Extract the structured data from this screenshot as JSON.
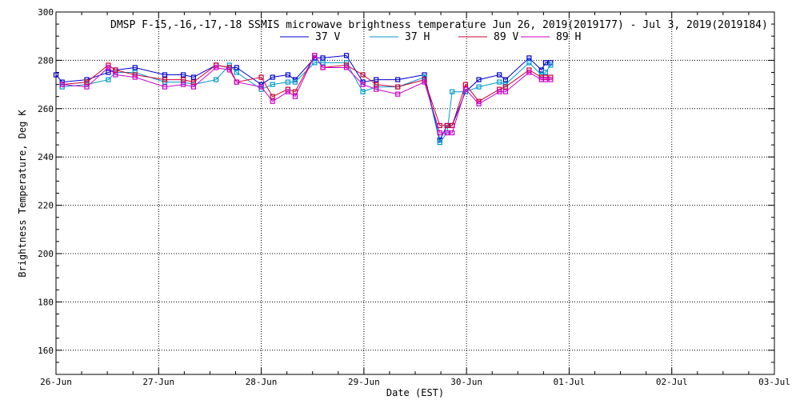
{
  "chart_data": {
    "type": "line",
    "title": "DMSP F-15,-16,-17,-18 SSMIS microwave brightness temperature Jun 26, 2019(2019177) - Jul  3, 2019(2019184)",
    "xlabel": "Date (EST)",
    "ylabel": "Brightness Temperature, Deg K",
    "xlim": [
      "26-Jun",
      "03-Jul"
    ],
    "ylim": [
      150,
      300
    ],
    "x_ticks": [
      "26-Jun",
      "27-Jun",
      "28-Jun",
      "29-Jun",
      "30-Jun",
      "01-Jul",
      "02-Jul",
      "03-Jul"
    ],
    "y_ticks": [
      160,
      180,
      200,
      220,
      240,
      260,
      280,
      300
    ],
    "grid": true,
    "legend_position": "top",
    "series": [
      {
        "name": "37 V",
        "color": "#0000cc",
        "x": [
          0.0,
          0.06,
          0.3,
          0.51,
          0.58,
          0.77,
          1.06,
          1.24,
          1.34,
          1.56,
          1.69,
          1.76,
          2.0,
          2.11,
          2.26,
          2.33,
          2.52,
          2.6,
          2.83,
          2.99,
          3.12,
          3.33,
          3.59,
          3.74,
          3.81,
          3.86,
          3.99,
          4.12,
          4.32,
          4.38,
          4.61,
          4.73,
          4.77,
          4.82
        ],
        "y": [
          274,
          271,
          272,
          275,
          276,
          277,
          274,
          274,
          273,
          278,
          277,
          277,
          270,
          273,
          274,
          272,
          281,
          281,
          282,
          271,
          272,
          272,
          274,
          247,
          253,
          253,
          267,
          272,
          274,
          272,
          281,
          276,
          279,
          279
        ]
      },
      {
        "name": "37 H",
        "color": "#0099cc",
        "x": [
          0.06,
          0.3,
          0.51,
          0.58,
          0.77,
          1.06,
          1.24,
          1.34,
          1.56,
          1.69,
          1.76,
          2.0,
          2.11,
          2.26,
          2.33,
          2.52,
          2.6,
          2.83,
          2.99,
          3.12,
          3.33,
          3.59,
          3.74,
          3.81,
          3.86,
          3.99,
          4.12,
          4.32,
          4.38,
          4.61,
          4.73,
          4.77,
          4.82
        ],
        "y": [
          269,
          270,
          272,
          275,
          275,
          271,
          271,
          270,
          272,
          278,
          275,
          268,
          270,
          271,
          271,
          279,
          279,
          279,
          267,
          269,
          269,
          273,
          246,
          250,
          267,
          267,
          269,
          271,
          270,
          279,
          274,
          275,
          278
        ]
      },
      {
        "name": "89 V",
        "color": "#cc0033",
        "x": [
          0.06,
          0.3,
          0.51,
          0.58,
          0.77,
          1.06,
          1.24,
          1.34,
          1.56,
          1.69,
          1.76,
          2.0,
          2.11,
          2.26,
          2.33,
          2.52,
          2.6,
          2.83,
          2.99,
          3.12,
          3.33,
          3.59,
          3.74,
          3.81,
          3.86,
          3.99,
          4.12,
          4.32,
          4.38,
          4.61,
          4.73,
          4.77,
          4.82
        ],
        "y": [
          270,
          271,
          278,
          276,
          274,
          272,
          272,
          271,
          278,
          277,
          271,
          273,
          265,
          268,
          267,
          282,
          277,
          278,
          274,
          270,
          269,
          272,
          253,
          253,
          253,
          270,
          263,
          268,
          269,
          276,
          273,
          273,
          273
        ]
      },
      {
        "name": "89 H",
        "color": "#cc00cc",
        "x": [
          0.06,
          0.3,
          0.51,
          0.58,
          0.77,
          1.06,
          1.24,
          1.34,
          1.56,
          1.69,
          1.76,
          2.0,
          2.11,
          2.26,
          2.33,
          2.52,
          2.6,
          2.83,
          2.99,
          3.12,
          3.33,
          3.59,
          3.74,
          3.81,
          3.86,
          3.99,
          4.12,
          4.32,
          4.38,
          4.61,
          4.73,
          4.77,
          4.82
        ],
        "y": [
          270,
          269,
          277,
          274,
          273,
          269,
          270,
          269,
          277,
          276,
          271,
          269,
          263,
          267,
          265,
          282,
          277,
          277,
          270,
          268,
          266,
          271,
          250,
          250,
          250,
          268,
          262,
          267,
          267,
          275,
          272,
          272,
          272
        ]
      }
    ]
  }
}
